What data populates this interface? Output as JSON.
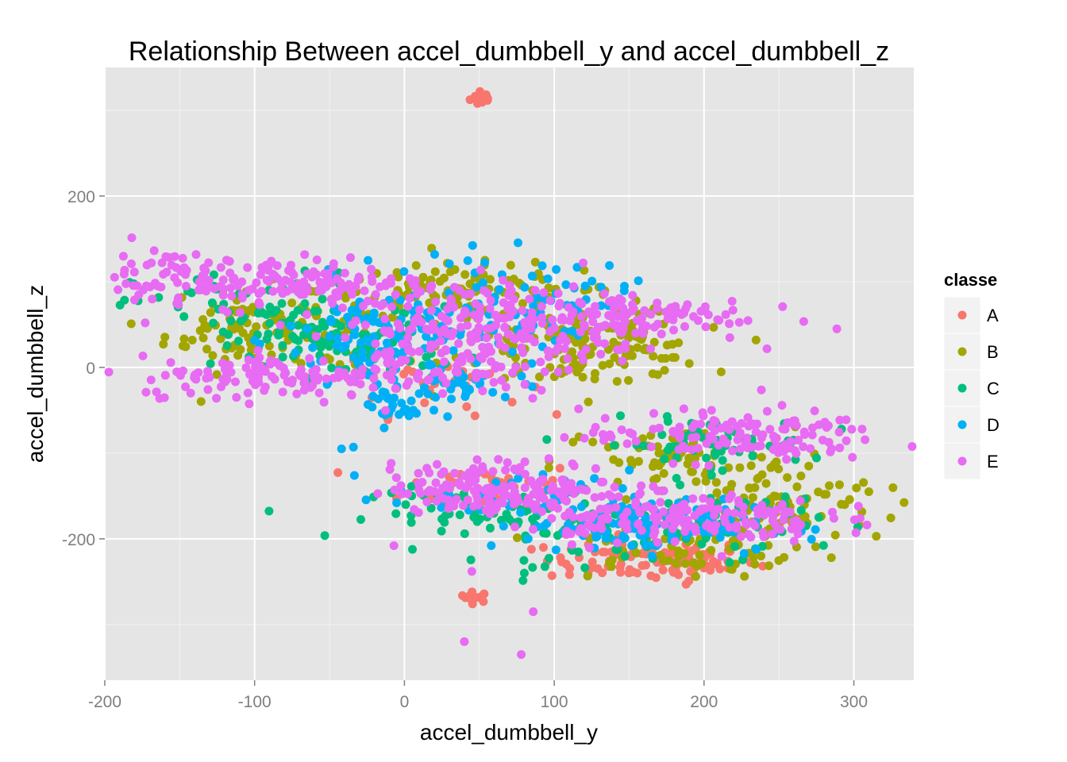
{
  "chart_data": {
    "type": "scatter",
    "title": "Relationship Between accel_dumbbell_y and accel_dumbbell_z",
    "xlabel": "accel_dumbbell_y",
    "ylabel": "accel_dumbbell_z",
    "xlim": [
      -200,
      340
    ],
    "ylim": [
      -365,
      350
    ],
    "xticks": [
      -200,
      -100,
      0,
      100,
      200,
      300
    ],
    "yticks": [
      -200,
      0,
      200
    ],
    "grid": true,
    "legend": {
      "title": "classe",
      "position": "right"
    },
    "series": [
      {
        "name": "A",
        "color": "#F8766D"
      },
      {
        "name": "B",
        "color": "#A3A500"
      },
      {
        "name": "C",
        "color": "#00BF7D"
      },
      {
        "name": "D",
        "color": "#00B0F6"
      },
      {
        "name": "E",
        "color": "#E76BF3"
      }
    ],
    "clusters": [
      {
        "series": "A",
        "center": [
          52,
          315
        ],
        "spread": [
          4,
          5
        ],
        "count": 14
      },
      {
        "series": "A",
        "center": [
          47,
          -268
        ],
        "spread": [
          5,
          3
        ],
        "count": 12
      },
      {
        "series": "A",
        "center": [
          165,
          -225
        ],
        "spread": [
          35,
          12
        ],
        "count": 110
      },
      {
        "series": "A",
        "center": [
          60,
          -140
        ],
        "spread": [
          30,
          15
        ],
        "count": 40
      },
      {
        "series": "A",
        "center": [
          20,
          -15
        ],
        "spread": [
          30,
          20
        ],
        "count": 30
      },
      {
        "series": "B",
        "center": [
          -110,
          45
        ],
        "spread": [
          25,
          25
        ],
        "count": 70
      },
      {
        "series": "B",
        "center": [
          40,
          90
        ],
        "spread": [
          50,
          15
        ],
        "count": 110
      },
      {
        "series": "B",
        "center": [
          110,
          30
        ],
        "spread": [
          40,
          25
        ],
        "count": 110
      },
      {
        "series": "B",
        "center": [
          140,
          20
        ],
        "spread": [
          30,
          15
        ],
        "count": 60
      },
      {
        "series": "B",
        "center": [
          180,
          -110
        ],
        "spread": [
          40,
          20
        ],
        "count": 70
      },
      {
        "series": "B",
        "center": [
          250,
          -160
        ],
        "spread": [
          35,
          25
        ],
        "count": 90
      },
      {
        "series": "B",
        "center": [
          180,
          -215
        ],
        "spread": [
          40,
          15
        ],
        "count": 60
      },
      {
        "series": "B",
        "center": [
          -70,
          40
        ],
        "spread": [
          25,
          20
        ],
        "count": 40
      },
      {
        "series": "C",
        "center": [
          -100,
          70
        ],
        "spread": [
          40,
          20
        ],
        "count": 60
      },
      {
        "series": "C",
        "center": [
          -40,
          30
        ],
        "spread": [
          40,
          20
        ],
        "count": 90
      },
      {
        "series": "C",
        "center": [
          200,
          -90
        ],
        "spread": [
          35,
          15
        ],
        "count": 60
      },
      {
        "series": "C",
        "center": [
          60,
          -170
        ],
        "spread": [
          40,
          15
        ],
        "count": 60
      },
      {
        "series": "C",
        "center": [
          130,
          -190
        ],
        "spread": [
          40,
          20
        ],
        "count": 60
      },
      {
        "series": "C",
        "center": [
          220,
          -180
        ],
        "spread": [
          30,
          20
        ],
        "count": 40
      },
      {
        "series": "D",
        "center": [
          -10,
          30
        ],
        "spread": [
          35,
          35
        ],
        "count": 130
      },
      {
        "series": "D",
        "center": [
          -10,
          -45
        ],
        "spread": [
          10,
          12
        ],
        "count": 25
      },
      {
        "series": "D",
        "center": [
          40,
          -20
        ],
        "spread": [
          20,
          12
        ],
        "count": 30
      },
      {
        "series": "D",
        "center": [
          90,
          80
        ],
        "spread": [
          30,
          25
        ],
        "count": 60
      },
      {
        "series": "D",
        "center": [
          160,
          -185
        ],
        "spread": [
          40,
          15
        ],
        "count": 120
      },
      {
        "series": "D",
        "center": [
          70,
          -150
        ],
        "spread": [
          40,
          15
        ],
        "count": 40
      },
      {
        "series": "E",
        "center": [
          -90,
          100
        ],
        "spread": [
          55,
          15
        ],
        "count": 160
      },
      {
        "series": "E",
        "center": [
          -70,
          -10
        ],
        "spread": [
          55,
          12
        ],
        "count": 140
      },
      {
        "series": "E",
        "center": [
          40,
          40
        ],
        "spread": [
          50,
          30
        ],
        "count": 220
      },
      {
        "series": "E",
        "center": [
          140,
          60
        ],
        "spread": [
          45,
          15
        ],
        "count": 110
      },
      {
        "series": "E",
        "center": [
          220,
          -80
        ],
        "spread": [
          50,
          15
        ],
        "count": 130
      },
      {
        "series": "E",
        "center": [
          70,
          -140
        ],
        "spread": [
          40,
          15
        ],
        "count": 160
      },
      {
        "series": "E",
        "center": [
          180,
          -175
        ],
        "spread": [
          50,
          15
        ],
        "count": 170
      },
      {
        "series": "E",
        "center": [
          -160,
          120
        ],
        "spread": [
          15,
          15
        ],
        "count": 20
      }
    ],
    "outliers": [
      {
        "series": "D",
        "x": -42,
        "y": -95
      },
      {
        "series": "D",
        "x": -34,
        "y": -93
      },
      {
        "series": "E",
        "x": -7,
        "y": -208
      },
      {
        "series": "E",
        "x": 40,
        "y": -320
      },
      {
        "series": "E",
        "x": 78,
        "y": -335
      },
      {
        "series": "E",
        "x": 86,
        "y": -285
      },
      {
        "series": "E",
        "x": -173,
        "y": 52
      },
      {
        "series": "E",
        "x": 205,
        "y": -50
      },
      {
        "series": "E",
        "x": 283,
        "y": -68
      },
      {
        "series": "E",
        "x": 210,
        "y": 55
      },
      {
        "series": "B",
        "x": 315,
        "y": -197
      },
      {
        "series": "B",
        "x": 310,
        "y": -145
      },
      {
        "series": "B",
        "x": 285,
        "y": -222
      },
      {
        "series": "C",
        "x": 80,
        "y": -240
      },
      {
        "series": "A",
        "x": 188,
        "y": -253
      },
      {
        "series": "E",
        "x": 45,
        "y": -238
      }
    ]
  }
}
